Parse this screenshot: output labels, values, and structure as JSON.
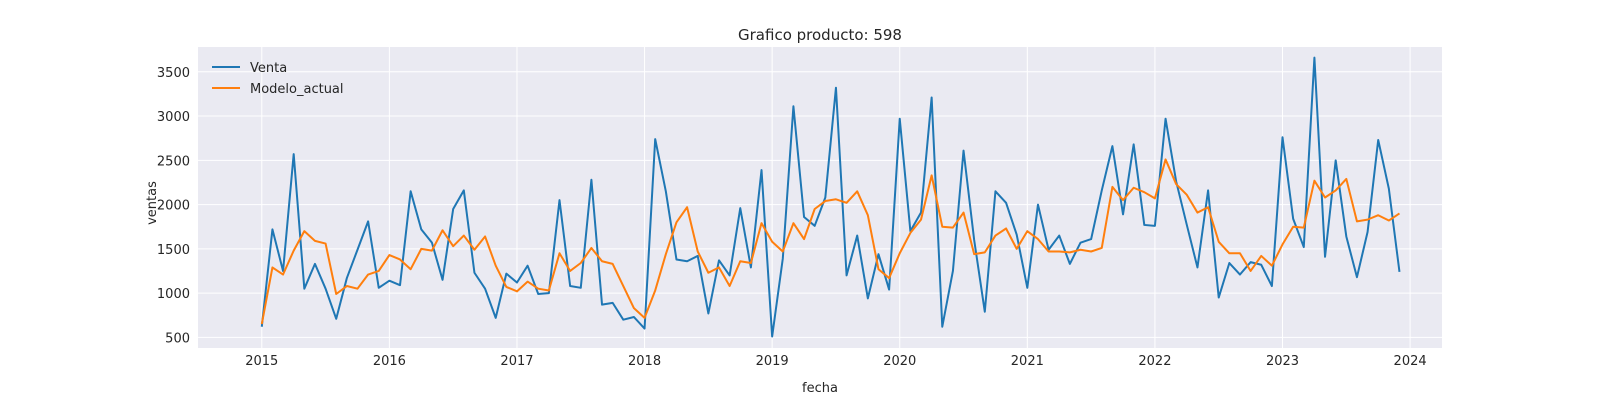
{
  "chart_data": {
    "type": "line",
    "title": "Grafico producto: 598",
    "xlabel": "fecha",
    "ylabel": "ventas",
    "x_start": "2015-01",
    "x_frequency": "monthly",
    "xlim": [
      "2014-07",
      "2024-04"
    ],
    "ylim": [
      380,
      3780
    ],
    "x_ticks": [
      "2015",
      "2016",
      "2017",
      "2018",
      "2019",
      "2020",
      "2021",
      "2022",
      "2023",
      "2024"
    ],
    "y_ticks": [
      500,
      1000,
      1500,
      2000,
      2500,
      3000,
      3500
    ],
    "grid": true,
    "legend_position": "top-left",
    "series": [
      {
        "name": "Venta",
        "color": "#1f77b4",
        "values": [
          620,
          1720,
          1250,
          2570,
          1050,
          1330,
          1050,
          710,
          1170,
          1490,
          1810,
          1060,
          1140,
          1090,
          2150,
          1720,
          1570,
          1150,
          1950,
          2160,
          1230,
          1050,
          720,
          1220,
          1120,
          1310,
          990,
          1000,
          2050,
          1080,
          1060,
          2280,
          870,
          890,
          700,
          730,
          600,
          2740,
          2150,
          1380,
          1360,
          1420,
          770,
          1370,
          1200,
          1960,
          1290,
          2390,
          510,
          1390,
          3110,
          1860,
          1760,
          2080,
          3320,
          1200,
          1650,
          940,
          1440,
          1040,
          2970,
          1700,
          1910,
          3210,
          620,
          1250,
          2610,
          1600,
          790,
          2150,
          2020,
          1660,
          1060,
          2000,
          1490,
          1650,
          1330,
          1570,
          1610,
          2160,
          2660,
          1890,
          2680,
          1770,
          1760,
          2970,
          2260,
          1770,
          1290,
          2160,
          950,
          1340,
          1210,
          1350,
          1320,
          1080,
          2760,
          1840,
          1520,
          3660,
          1410,
          2500,
          1640,
          1180,
          1690,
          2730,
          2180,
          1240
        ]
      },
      {
        "name": "Modelo_actual",
        "color": "#ff7f0e",
        "values": [
          650,
          1290,
          1210,
          1480,
          1700,
          1590,
          1560,
          990,
          1080,
          1050,
          1210,
          1250,
          1430,
          1380,
          1270,
          1500,
          1480,
          1710,
          1530,
          1650,
          1490,
          1640,
          1310,
          1070,
          1020,
          1130,
          1050,
          1030,
          1450,
          1250,
          1340,
          1510,
          1360,
          1330,
          1080,
          830,
          720,
          1030,
          1440,
          1800,
          1970,
          1470,
          1230,
          1290,
          1080,
          1360,
          1340,
          1790,
          1580,
          1470,
          1790,
          1610,
          1950,
          2040,
          2060,
          2020,
          2150,
          1880,
          1270,
          1170,
          1450,
          1680,
          1830,
          2330,
          1750,
          1740,
          1910,
          1440,
          1460,
          1650,
          1730,
          1500,
          1700,
          1610,
          1470,
          1470,
          1460,
          1490,
          1470,
          1510,
          2200,
          2050,
          2190,
          2140,
          2070,
          2510,
          2230,
          2110,
          1910,
          1970,
          1580,
          1450,
          1450,
          1250,
          1420,
          1310,
          1550,
          1750,
          1740,
          2270,
          2080,
          2160,
          2290,
          1810,
          1830,
          1880,
          1820,
          1900
        ]
      }
    ]
  }
}
